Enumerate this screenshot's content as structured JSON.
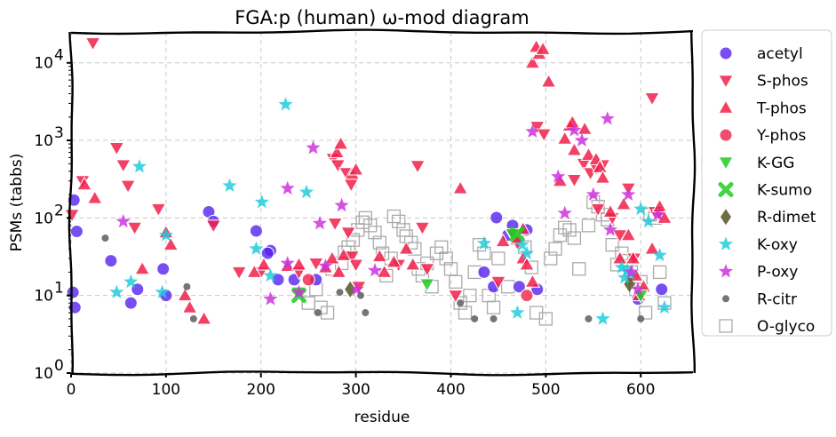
{
  "chart_data": {
    "type": "scatter",
    "title": "FGA:p (human) ω-mod diagram",
    "xlabel": "residue",
    "ylabel": "PSMs (tabbs)",
    "xlim": [
      0,
      655
    ],
    "ylim": [
      1,
      25000
    ],
    "yscale": "log",
    "x_ticks": [
      0,
      100,
      200,
      300,
      400,
      500,
      600
    ],
    "x_tick_labels": [
      "0",
      "100",
      "200",
      "300",
      "400",
      "500",
      "600"
    ],
    "y_ticks": [
      1,
      10,
      100,
      1000,
      10000
    ],
    "y_tick_labels": [
      "10",
      "10",
      "10",
      "10",
      "10"
    ],
    "y_tick_exponents": [
      "0",
      "1",
      "2",
      "3",
      "4"
    ],
    "grid": true,
    "legend_position": "right",
    "series": [
      {
        "name": "acetyl",
        "marker": "circle",
        "color": "#5522ee",
        "points": [
          [
            2,
            11
          ],
          [
            4,
            7
          ],
          [
            6,
            67
          ],
          [
            3,
            170
          ],
          [
            42,
            28
          ],
          [
            63,
            8
          ],
          [
            70,
            12
          ],
          [
            97,
            22
          ],
          [
            100,
            10
          ],
          [
            145,
            120
          ],
          [
            150,
            90
          ],
          [
            195,
            68
          ],
          [
            210,
            38
          ],
          [
            207,
            35
          ],
          [
            218,
            16
          ],
          [
            235,
            16
          ],
          [
            258,
            16
          ],
          [
            435,
            20
          ],
          [
            445,
            13
          ],
          [
            448,
            101
          ],
          [
            460,
            60
          ],
          [
            465,
            80
          ],
          [
            472,
            13
          ],
          [
            491,
            12
          ],
          [
            480,
            70
          ],
          [
            597,
            9
          ],
          [
            622,
            12
          ]
        ]
      },
      {
        "name": "S-phos",
        "marker": "triangle-down",
        "color": "#f0204a",
        "points": [
          [
            1,
            110
          ],
          [
            12,
            300
          ],
          [
            23,
            18000
          ],
          [
            48,
            800
          ],
          [
            55,
            480
          ],
          [
            60,
            260
          ],
          [
            67,
            75
          ],
          [
            92,
            130
          ],
          [
            150,
            80
          ],
          [
            177,
            20
          ],
          [
            200,
            20
          ],
          [
            240,
            20
          ],
          [
            258,
            26
          ],
          [
            276,
            580
          ],
          [
            281,
            480
          ],
          [
            290,
            380
          ],
          [
            295,
            270
          ],
          [
            278,
            85
          ],
          [
            292,
            65
          ],
          [
            296,
            32
          ],
          [
            300,
            25
          ],
          [
            303,
            13
          ],
          [
            345,
            25
          ],
          [
            365,
            470
          ],
          [
            370,
            75
          ],
          [
            375,
            22
          ],
          [
            405,
            10
          ],
          [
            450,
            15
          ],
          [
            465,
            60
          ],
          [
            470,
            48
          ],
          [
            491,
            1500
          ],
          [
            498,
            1200
          ],
          [
            530,
            310
          ],
          [
            540,
            500
          ],
          [
            547,
            380
          ],
          [
            553,
            440
          ],
          [
            555,
            130
          ],
          [
            560,
            480
          ],
          [
            570,
            100
          ],
          [
            578,
            60
          ],
          [
            587,
            240
          ],
          [
            593,
            30
          ],
          [
            612,
            3500
          ],
          [
            615,
            120
          ],
          [
            620,
            110
          ]
        ]
      },
      {
        "name": "T-phos",
        "marker": "triangle-up",
        "color": "#f0204a",
        "points": [
          [
            14,
            270
          ],
          [
            25,
            180
          ],
          [
            75,
            22
          ],
          [
            100,
            65
          ],
          [
            105,
            45
          ],
          [
            120,
            10
          ],
          [
            125,
            7
          ],
          [
            140,
            5
          ],
          [
            193,
            20
          ],
          [
            203,
            25
          ],
          [
            228,
            24
          ],
          [
            240,
            25
          ],
          [
            268,
            23
          ],
          [
            275,
            30
          ],
          [
            282,
            20
          ],
          [
            287,
            33
          ],
          [
            280,
            700
          ],
          [
            284,
            900
          ],
          [
            296,
            370
          ],
          [
            300,
            420
          ],
          [
            325,
            32
          ],
          [
            330,
            20
          ],
          [
            340,
            27
          ],
          [
            353,
            40
          ],
          [
            360,
            25
          ],
          [
            410,
            240
          ],
          [
            455,
            50
          ],
          [
            476,
            30
          ],
          [
            470,
            55
          ],
          [
            480,
            25
          ],
          [
            486,
            15
          ],
          [
            476,
            72
          ],
          [
            486,
            10000
          ],
          [
            493,
            13000
          ],
          [
            490,
            16000
          ],
          [
            497,
            15000
          ],
          [
            503,
            5700
          ],
          [
            515,
            300
          ],
          [
            520,
            1050
          ],
          [
            525,
            1550
          ],
          [
            528,
            1700
          ],
          [
            530,
            750
          ],
          [
            541,
            1400
          ],
          [
            545,
            650
          ],
          [
            553,
            570
          ],
          [
            557,
            450
          ],
          [
            560,
            330
          ],
          [
            568,
            120
          ],
          [
            578,
            30
          ],
          [
            582,
            150
          ],
          [
            587,
            60
          ],
          [
            592,
            30
          ],
          [
            595,
            18
          ],
          [
            598,
            10
          ],
          [
            603,
            13
          ],
          [
            612,
            40
          ],
          [
            620,
            140
          ],
          [
            625,
            100
          ]
        ]
      },
      {
        "name": "Y-phos",
        "marker": "circle",
        "color": "#f0204a",
        "points": [
          [
            250,
            16
          ],
          [
            480,
            10
          ]
        ]
      },
      {
        "name": "K-GG",
        "marker": "triangle-down",
        "color": "#22cc22",
        "points": [
          [
            240,
            11
          ],
          [
            375,
            14
          ],
          [
            465,
            62
          ],
          [
            600,
            10
          ]
        ]
      },
      {
        "name": "K-sumo",
        "marker": "x",
        "color": "#22cc22",
        "points": [
          [
            240,
            10
          ],
          [
            470,
            62
          ]
        ]
      },
      {
        "name": "R-dimet",
        "marker": "diamond",
        "color": "#555522",
        "points": [
          [
            294,
            12
          ],
          [
            588,
            14
          ]
        ]
      },
      {
        "name": "K-oxy",
        "marker": "star",
        "color": "#22ccdd",
        "points": [
          [
            48,
            11
          ],
          [
            63,
            15
          ],
          [
            72,
            460
          ],
          [
            96,
            11
          ],
          [
            100,
            60
          ],
          [
            167,
            260
          ],
          [
            195,
            40
          ],
          [
            201,
            160
          ],
          [
            210,
            18
          ],
          [
            226,
            2900
          ],
          [
            248,
            215
          ],
          [
            435,
            47
          ],
          [
            470,
            6
          ],
          [
            475,
            45
          ],
          [
            480,
            35
          ],
          [
            560,
            5
          ],
          [
            580,
            23
          ],
          [
            583,
            17
          ],
          [
            586,
            21
          ],
          [
            589,
            19
          ],
          [
            600,
            130
          ],
          [
            608,
            90
          ],
          [
            620,
            33
          ],
          [
            625,
            7
          ]
        ]
      },
      {
        "name": "P-oxy",
        "marker": "star",
        "color": "#cc33dd",
        "points": [
          [
            55,
            90
          ],
          [
            210,
            9
          ],
          [
            228,
            26
          ],
          [
            228,
            240
          ],
          [
            240,
            11
          ],
          [
            255,
            800
          ],
          [
            262,
            85
          ],
          [
            268,
            24
          ],
          [
            285,
            145
          ],
          [
            301,
            12
          ],
          [
            320,
            21
          ],
          [
            486,
            1300
          ],
          [
            513,
            340
          ],
          [
            520,
            115
          ],
          [
            530,
            1350
          ],
          [
            538,
            1000
          ],
          [
            550,
            200
          ],
          [
            565,
            1900
          ],
          [
            568,
            70
          ],
          [
            587,
            200
          ],
          [
            590,
            20
          ],
          [
            597,
            12
          ],
          [
            618,
            110
          ]
        ]
      },
      {
        "name": "R-citr",
        "marker": "dot",
        "color": "#666666",
        "points": [
          [
            36,
            55
          ],
          [
            122,
            13
          ],
          [
            129,
            5
          ],
          [
            260,
            6
          ],
          [
            283,
            11
          ],
          [
            305,
            10
          ],
          [
            310,
            6
          ],
          [
            410,
            8
          ],
          [
            425,
            5
          ],
          [
            445,
            5
          ],
          [
            545,
            5
          ],
          [
            600,
            5
          ]
        ]
      },
      {
        "name": "O-glyco",
        "marker": "square",
        "color": "#aaaaaa",
        "points": [
          [
            250,
            8
          ],
          [
            258,
            12
          ],
          [
            263,
            7
          ],
          [
            270,
            6
          ],
          [
            275,
            22
          ],
          [
            285,
            26
          ],
          [
            288,
            36
          ],
          [
            292,
            42
          ],
          [
            297,
            52
          ],
          [
            302,
            70
          ],
          [
            307,
            88
          ],
          [
            310,
            100
          ],
          [
            315,
            80
          ],
          [
            320,
            65
          ],
          [
            325,
            48
          ],
          [
            328,
            35
          ],
          [
            332,
            18
          ],
          [
            337,
            30
          ],
          [
            340,
            105
          ],
          [
            345,
            90
          ],
          [
            350,
            70
          ],
          [
            353,
            58
          ],
          [
            358,
            48
          ],
          [
            362,
            40
          ],
          [
            366,
            22
          ],
          [
            370,
            18
          ],
          [
            375,
            26
          ],
          [
            380,
            13
          ],
          [
            385,
            35
          ],
          [
            390,
            42
          ],
          [
            395,
            30
          ],
          [
            400,
            22
          ],
          [
            405,
            15
          ],
          [
            410,
            8
          ],
          [
            415,
            6
          ],
          [
            420,
            10
          ],
          [
            425,
            20
          ],
          [
            430,
            45
          ],
          [
            435,
            35
          ],
          [
            440,
            10
          ],
          [
            445,
            7
          ],
          [
            450,
            30
          ],
          [
            460,
            13
          ],
          [
            470,
            55
          ],
          [
            478,
            42
          ],
          [
            485,
            23
          ],
          [
            490,
            6
          ],
          [
            500,
            5
          ],
          [
            505,
            30
          ],
          [
            510,
            40
          ],
          [
            515,
            60
          ],
          [
            520,
            75
          ],
          [
            525,
            70
          ],
          [
            530,
            55
          ],
          [
            535,
            22
          ],
          [
            545,
            80
          ],
          [
            550,
            160
          ],
          [
            555,
            140
          ],
          [
            560,
            110
          ],
          [
            565,
            95
          ],
          [
            570,
            45
          ],
          [
            575,
            25
          ],
          [
            580,
            35
          ],
          [
            585,
            28
          ],
          [
            590,
            20
          ],
          [
            595,
            12
          ],
          [
            600,
            15
          ],
          [
            605,
            6
          ],
          [
            610,
            110
          ],
          [
            615,
            100
          ],
          [
            620,
            20
          ],
          [
            625,
            8
          ]
        ]
      }
    ]
  }
}
